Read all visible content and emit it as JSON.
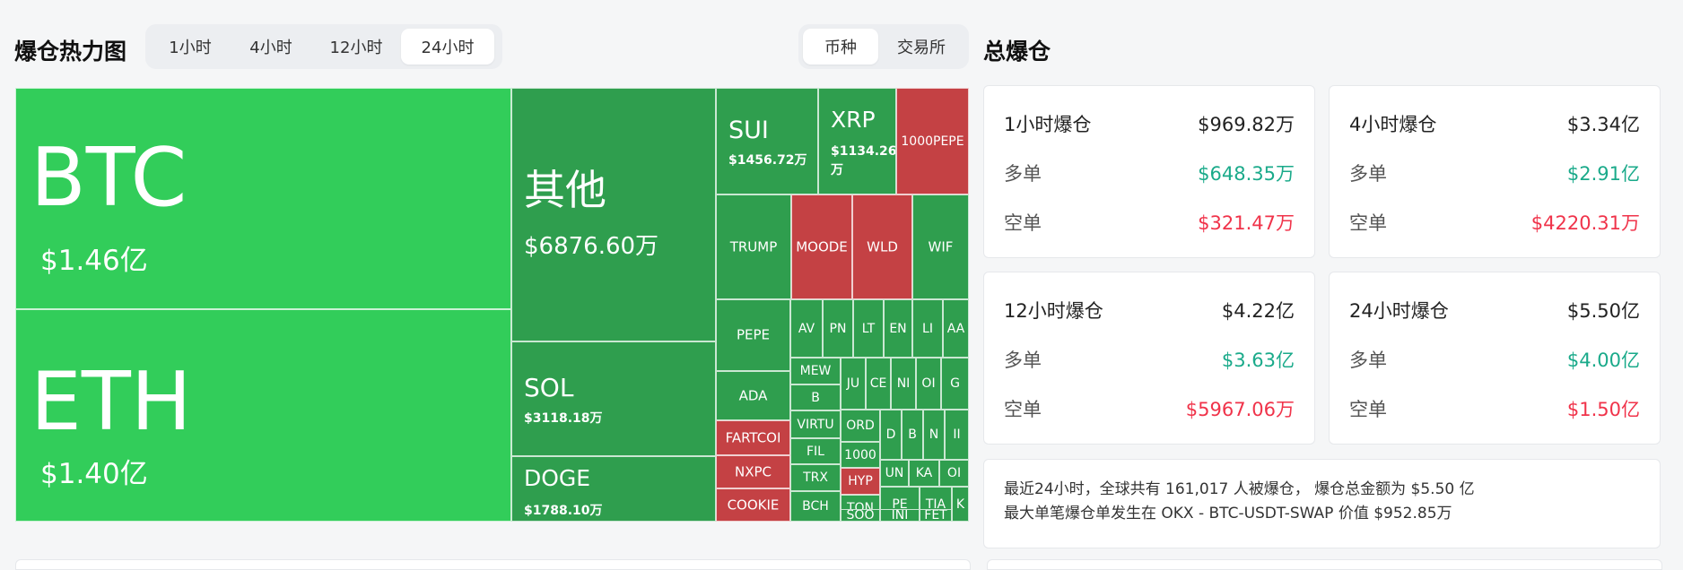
{
  "heatmap": {
    "title": "爆仓热力图",
    "time_tabs": [
      "1小时",
      "4小时",
      "12小时",
      "24小时"
    ],
    "active_time_tab": 3,
    "group_tabs": [
      "币种",
      "交易所"
    ],
    "active_group_tab": 0,
    "colors": {
      "long": "#2f9e4e",
      "short": "#c44144",
      "highlight": "#32cd5a"
    },
    "tiles": [
      {
        "name": "BTC",
        "value": "$1.46亿",
        "side": "long"
      },
      {
        "name": "ETH",
        "value": "$1.40亿",
        "side": "long"
      },
      {
        "name": "其他",
        "value": "$6876.60万",
        "side": "long"
      },
      {
        "name": "SOL",
        "value": "$3118.18万",
        "side": "long"
      },
      {
        "name": "DOGE",
        "value": "$1788.10万",
        "side": "long"
      },
      {
        "name": "SUI",
        "value": "$1456.72万",
        "side": "long"
      },
      {
        "name": "XRP",
        "value": "$1134.26万",
        "side": "long"
      },
      {
        "name": "1000PEPE",
        "side": "short"
      },
      {
        "name": "TRUMP",
        "side": "long"
      },
      {
        "name": "MOODE",
        "side": "short"
      },
      {
        "name": "WLD",
        "side": "short"
      },
      {
        "name": "WIF",
        "side": "long"
      },
      {
        "name": "PEPE",
        "side": "long"
      },
      {
        "name": "ADA",
        "side": "long"
      },
      {
        "name": "FARTCOI",
        "side": "short"
      },
      {
        "name": "NXPC",
        "side": "short"
      },
      {
        "name": "COOKIE",
        "side": "short"
      },
      {
        "name": "AV",
        "side": "long"
      },
      {
        "name": "PN",
        "side": "long"
      },
      {
        "name": "LT",
        "side": "long"
      },
      {
        "name": "EN",
        "side": "long"
      },
      {
        "name": "LI",
        "side": "long"
      },
      {
        "name": "AA",
        "side": "long"
      },
      {
        "name": "MEW",
        "side": "long"
      },
      {
        "name": "JU",
        "side": "long"
      },
      {
        "name": "CE",
        "side": "long"
      },
      {
        "name": "NI",
        "side": "long"
      },
      {
        "name": "OI",
        "side": "long"
      },
      {
        "name": "G",
        "side": "long"
      },
      {
        "name": "B",
        "side": "long"
      },
      {
        "name": "ORD",
        "side": "long"
      },
      {
        "name": "D",
        "side": "long"
      },
      {
        "name": "B",
        "side": "long"
      },
      {
        "name": "N",
        "side": "long"
      },
      {
        "name": "II",
        "side": "long"
      },
      {
        "name": "VIRTU",
        "side": "long"
      },
      {
        "name": "1000",
        "side": "long"
      },
      {
        "name": "FIL",
        "side": "long"
      },
      {
        "name": "HYP",
        "side": "short"
      },
      {
        "name": "UN",
        "side": "long"
      },
      {
        "name": "KA",
        "side": "long"
      },
      {
        "name": "OI",
        "side": "long"
      },
      {
        "name": "TRX",
        "side": "long"
      },
      {
        "name": "TON",
        "side": "long"
      },
      {
        "name": "PE",
        "side": "long"
      },
      {
        "name": "TIA",
        "side": "long"
      },
      {
        "name": "BCH",
        "side": "long"
      },
      {
        "name": "SOO",
        "side": "long"
      },
      {
        "name": "INI",
        "side": "long"
      },
      {
        "name": "FET",
        "side": "long"
      },
      {
        "name": "K",
        "side": "long"
      }
    ]
  },
  "total": {
    "title": "总爆仓",
    "cards": [
      {
        "label": "1小时爆仓",
        "total": "$969.82万",
        "long_label": "多单",
        "long": "$648.35万",
        "short_label": "空单",
        "short": "$321.47万"
      },
      {
        "label": "4小时爆仓",
        "total": "$3.34亿",
        "long_label": "多单",
        "long": "$2.91亿",
        "short_label": "空单",
        "short": "$4220.31万"
      },
      {
        "label": "12小时爆仓",
        "total": "$4.22亿",
        "long_label": "多单",
        "long": "$3.63亿",
        "short_label": "空单",
        "short": "$5967.06万"
      },
      {
        "label": "24小时爆仓",
        "total": "$5.50亿",
        "long_label": "多单",
        "long": "$4.00亿",
        "short_label": "空单",
        "short": "$1.50亿"
      }
    ],
    "summary_line1": "最近24小时，全球共有 161,017 人被爆仓， 爆仓总金额为 $5.50 亿",
    "summary_line2": "最大单笔爆仓单发生在 OKX - BTC-USDT-SWAP 价值 $952.85万"
  }
}
